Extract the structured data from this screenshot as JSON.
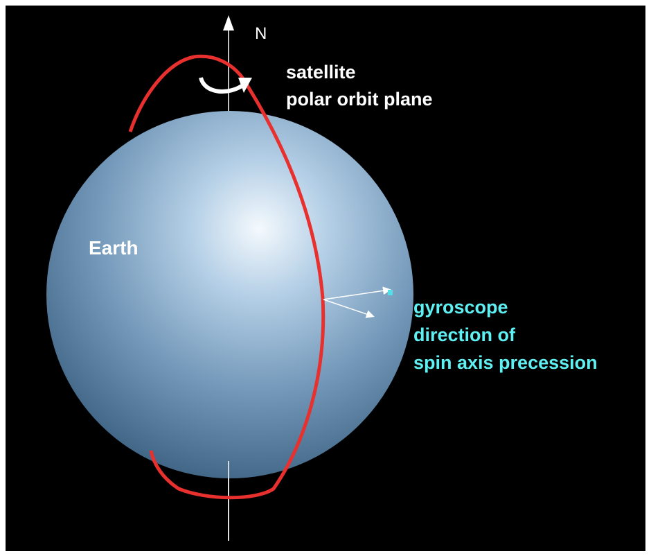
{
  "axis_label": "N",
  "orbit_label": [
    "satellite",
    "polar orbit plane"
  ],
  "earth_label": "Earth",
  "gyroscope_label": [
    "gyroscope",
    "direction of",
    "spin axis precession"
  ]
}
